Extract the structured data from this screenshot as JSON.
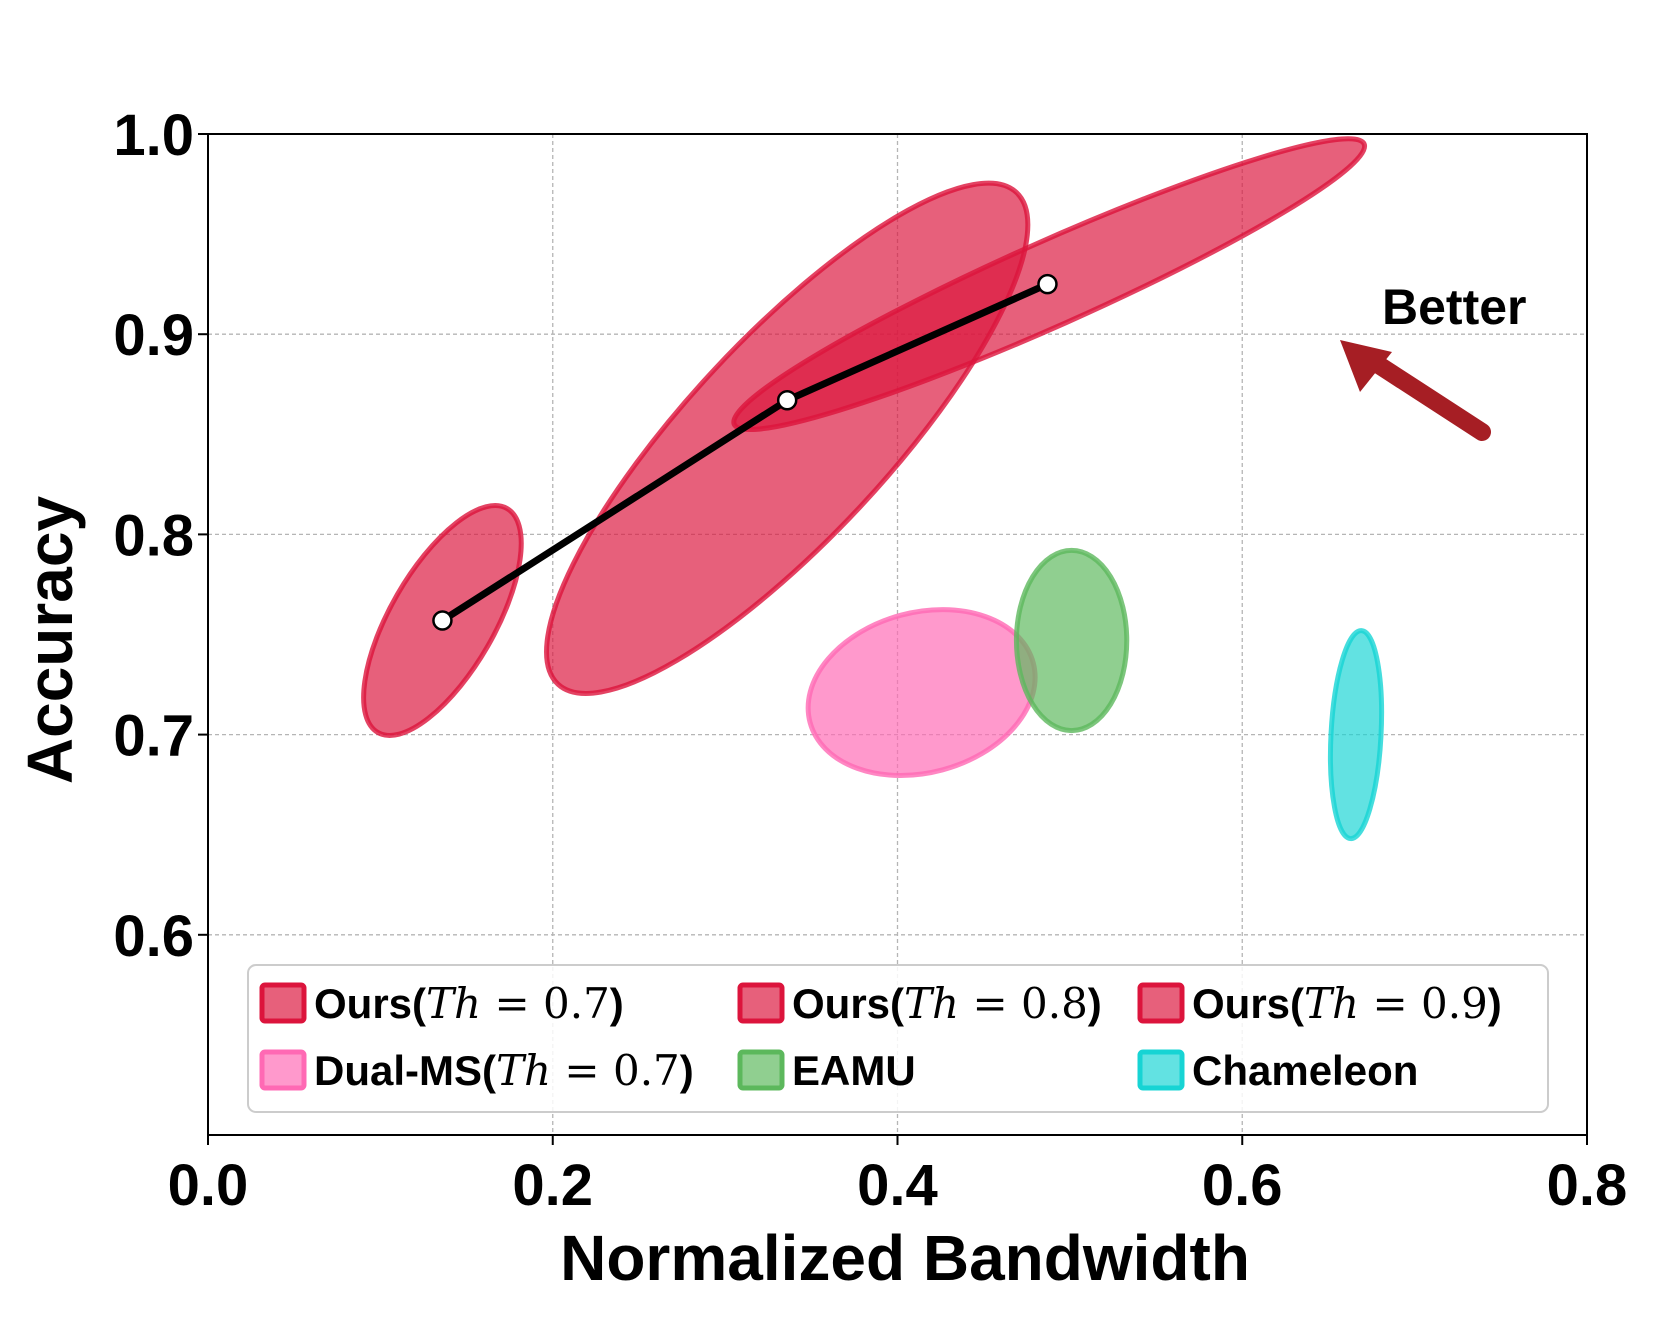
{
  "chart_data": {
    "type": "scatter",
    "xlabel": "Normalized Bandwidth",
    "ylabel": "Accuracy",
    "xlim": [
      0.0,
      0.8
    ],
    "ylim": [
      0.5,
      1.0
    ],
    "xticks": [
      "0.0",
      "0.2",
      "0.4",
      "0.6",
      "0.8"
    ],
    "yticks": [
      "0.6",
      "0.7",
      "0.8",
      "0.9",
      "1.0"
    ],
    "grid": true,
    "legend_position": "bottom",
    "annotation": "Better",
    "annotation_arrow_color": "#a61e24",
    "line": {
      "color": "#000000",
      "points": [
        {
          "x": 0.136,
          "y": 0.757
        },
        {
          "x": 0.336,
          "y": 0.867
        },
        {
          "x": 0.487,
          "y": 0.925
        }
      ]
    },
    "series": [
      {
        "name": "Ours",
        "th": "Th = 0.7",
        "color": "#dc143c",
        "cx": 0.136,
        "cy": 0.757,
        "rx": 0.075,
        "ry": 0.026,
        "angle_deg": 60
      },
      {
        "name": "Ours",
        "th": "Th = 0.8",
        "color": "#dc143c",
        "cx": 0.336,
        "cy": 0.848,
        "rx": 0.195,
        "ry": 0.05,
        "angle_deg": 47
      },
      {
        "name": "Ours",
        "th": "Th = 0.9",
        "color": "#dc143c",
        "cx": 0.488,
        "cy": 0.925,
        "rx": 0.2,
        "ry": 0.021,
        "angle_deg": 24
      },
      {
        "name": "Dual-MS",
        "th": "Th = 0.7",
        "color": "#ff69b4",
        "cx": 0.414,
        "cy": 0.721,
        "rx": 0.067,
        "ry": 0.04,
        "angle_deg": 15
      },
      {
        "name": "EAMU",
        "th": "",
        "color": "#5cb85c",
        "cx": 0.501,
        "cy": 0.747,
        "rx": 0.032,
        "ry": 0.045,
        "angle_deg": 0
      },
      {
        "name": "Chameleon",
        "th": "",
        "color": "#17d4d4",
        "cx": 0.666,
        "cy": 0.7,
        "rx": 0.0145,
        "ry": 0.052,
        "angle_deg": -3
      }
    ]
  }
}
